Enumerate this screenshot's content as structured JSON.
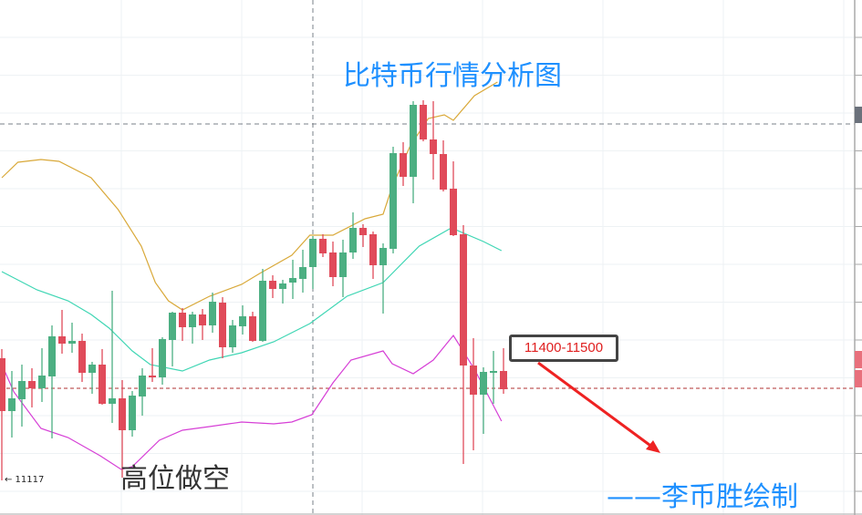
{
  "chart_data": {
    "type": "candlestick",
    "title": "比特币行情分析图",
    "annotations": {
      "strategy": "高位做空",
      "author": "——李币胜绘制",
      "target_range": "11400-11500",
      "low_marker": "← 11117"
    },
    "reference_lines": {
      "current_price": 11420,
      "crosshair_price": 12290,
      "crosshair_index": 31
    },
    "colors": {
      "up": "#4caf82",
      "down": "#e04b5a",
      "upper_band": "#d9a93a",
      "middle_band": "#3fd6b4",
      "lower_band": "#d63fd6",
      "title": "#1e90ff",
      "arrow": "#ee2222"
    },
    "grid": true,
    "candles": [
      [
        11519,
        11345,
        11549,
        11117
      ],
      [
        11345,
        11387,
        11477,
        11258
      ],
      [
        11384,
        11444,
        11498,
        11294
      ],
      [
        11444,
        11420,
        11486,
        11357
      ],
      [
        11420,
        11462,
        11552,
        11375
      ],
      [
        11459,
        11591,
        11627,
        11255
      ],
      [
        11591,
        11567,
        11678,
        11534
      ],
      [
        11567,
        11576,
        11636,
        11537
      ],
      [
        11576,
        11471,
        11600,
        11441
      ],
      [
        11471,
        11498,
        11507,
        11402
      ],
      [
        11498,
        11369,
        11549,
        11366
      ],
      [
        11369,
        11387,
        11741,
        11306
      ],
      [
        11387,
        11282,
        11447,
        11126
      ],
      [
        11282,
        11396,
        11411,
        11261
      ],
      [
        11393,
        11462,
        11486,
        11330
      ],
      [
        11462,
        11456,
        11552,
        11441
      ],
      [
        11456,
        11582,
        11588,
        11432
      ],
      [
        11579,
        11669,
        11672,
        11492
      ],
      [
        11669,
        11621,
        11684,
        11576
      ],
      [
        11621,
        11663,
        11672,
        11567
      ],
      [
        11663,
        11627,
        11681,
        11579
      ],
      [
        11627,
        11705,
        11735,
        11603
      ],
      [
        11702,
        11555,
        11720,
        11519
      ],
      [
        11555,
        11627,
        11645,
        11537
      ],
      [
        11624,
        11657,
        11693,
        11597
      ],
      [
        11657,
        11576,
        11672,
        11573
      ],
      [
        11576,
        11774,
        11813,
        11573
      ],
      [
        11774,
        11747,
        11792,
        11717
      ],
      [
        11747,
        11765,
        11777,
        11699
      ],
      [
        11768,
        11783,
        11843,
        11714
      ],
      [
        11780,
        11819,
        11876,
        11735
      ],
      [
        11819,
        11912,
        11921,
        11747
      ],
      [
        11912,
        11864,
        11927,
        11852
      ],
      [
        11867,
        11786,
        11903,
        11756
      ],
      [
        11786,
        11867,
        11909,
        11720
      ],
      [
        11867,
        11948,
        11999,
        11846
      ],
      [
        11948,
        11924,
        11960,
        11885
      ],
      [
        11927,
        11825,
        11936,
        11780
      ],
      [
        11825,
        11882,
        11897,
        11666
      ],
      [
        11879,
        12194,
        12215,
        11864
      ],
      [
        12194,
        12116,
        12230,
        12086
      ],
      [
        12116,
        12353,
        12365,
        12029
      ],
      [
        12353,
        12239,
        12368,
        12233
      ],
      [
        12239,
        12191,
        12365,
        12107
      ],
      [
        12191,
        12074,
        12236,
        12068
      ],
      [
        12077,
        11924,
        12167,
        11921
      ],
      [
        11927,
        11495,
        11957,
        11171
      ],
      [
        11495,
        11399,
        11585,
        11216
      ],
      [
        11399,
        11474,
        11489,
        11270
      ],
      [
        11474,
        11477,
        11543,
        11369
      ],
      [
        11477,
        11417,
        11552,
        11402
      ]
    ],
    "candle_fields": [
      "open",
      "close",
      "high",
      "low"
    ],
    "bands": {
      "upper": [
        [
          0,
          12113
        ],
        [
          1.6,
          12164
        ],
        [
          3.9,
          12173
        ],
        [
          5.7,
          12167
        ],
        [
          8.9,
          12113
        ],
        [
          11.6,
          12008
        ],
        [
          13.9,
          11888
        ],
        [
          15.3,
          11768
        ],
        [
          16.6,
          11708
        ],
        [
          18,
          11678
        ],
        [
          20.7,
          11723
        ],
        [
          23.9,
          11762
        ],
        [
          25.7,
          11798
        ],
        [
          28.9,
          11858
        ],
        [
          30.7,
          11924
        ],
        [
          33,
          11924
        ],
        [
          36.2,
          11978
        ],
        [
          38,
          11993
        ],
        [
          38.9,
          12083
        ],
        [
          40.7,
          12218
        ],
        [
          42.5,
          12308
        ],
        [
          44.1,
          12320
        ],
        [
          45,
          12302
        ],
        [
          47.1,
          12383
        ],
        [
          49.4,
          12428
        ]
      ],
      "middle": [
        [
          0,
          11804
        ],
        [
          3.5,
          11744
        ],
        [
          6.6,
          11708
        ],
        [
          8.9,
          11663
        ],
        [
          10.7,
          11618
        ],
        [
          13,
          11543
        ],
        [
          14.8,
          11498
        ],
        [
          18,
          11477
        ],
        [
          20.7,
          11513
        ],
        [
          23.9,
          11537
        ],
        [
          27.1,
          11573
        ],
        [
          30.7,
          11633
        ],
        [
          34.4,
          11723
        ],
        [
          38,
          11768
        ],
        [
          41.6,
          11888
        ],
        [
          44.8,
          11948
        ],
        [
          48,
          11903
        ],
        [
          49.8,
          11873
        ]
      ],
      "lower": [
        [
          0,
          11498
        ],
        [
          1.2,
          11408
        ],
        [
          3.9,
          11288
        ],
        [
          6.6,
          11258
        ],
        [
          9.8,
          11198
        ],
        [
          11.9,
          11153
        ],
        [
          13,
          11162
        ],
        [
          15.7,
          11249
        ],
        [
          18,
          11282
        ],
        [
          20.7,
          11294
        ],
        [
          23.9,
          11309
        ],
        [
          27.1,
          11303
        ],
        [
          28.9,
          11309
        ],
        [
          30.9,
          11333
        ],
        [
          33,
          11438
        ],
        [
          34.8,
          11513
        ],
        [
          38,
          11543
        ],
        [
          38.9,
          11501
        ],
        [
          41,
          11468
        ],
        [
          43,
          11513
        ],
        [
          45,
          11594
        ],
        [
          47.1,
          11483
        ],
        [
          49.8,
          11312
        ]
      ]
    }
  }
}
